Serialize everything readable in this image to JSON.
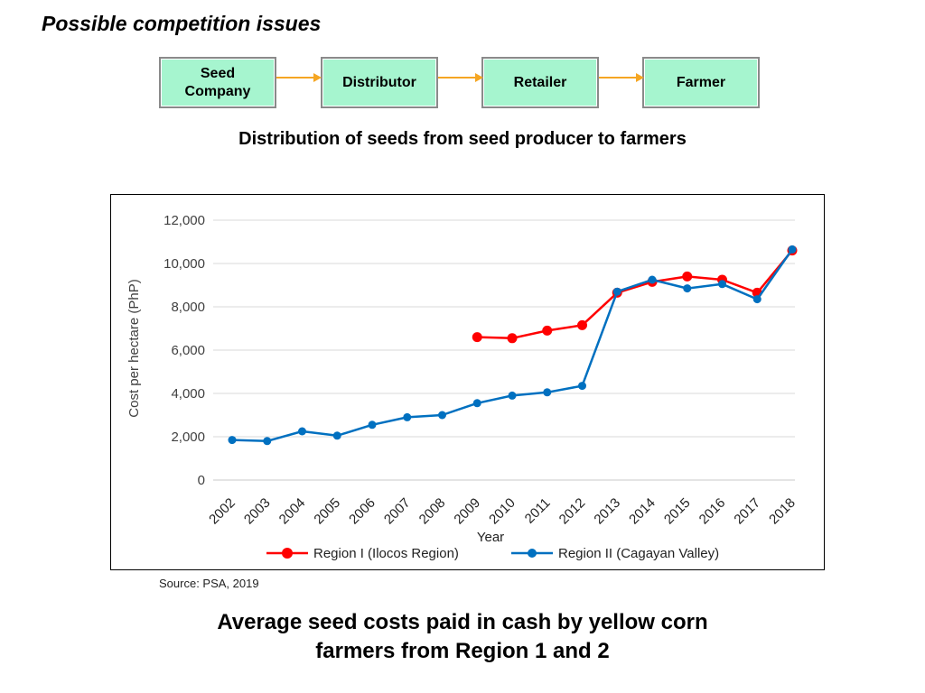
{
  "page": {
    "title": "Possible competition issues"
  },
  "flow": {
    "steps": [
      "Seed\nCompany",
      "Distributor",
      "Retailer",
      "Farmer"
    ],
    "box_color": "#a6f5cf",
    "arrow_color": "#f5a623",
    "caption": "Distribution of seeds from seed producer to farmers"
  },
  "chart_data": {
    "type": "line",
    "title": "",
    "xlabel": "Year",
    "ylabel": "Cost per hectare (PhP)",
    "categories": [
      "2002",
      "2003",
      "2004",
      "2005",
      "2006",
      "2007",
      "2008",
      "2009",
      "2010",
      "2011",
      "2012",
      "2013",
      "2014",
      "2015",
      "2016",
      "2017",
      "2018"
    ],
    "ylim": [
      0,
      12000
    ],
    "yticks": [
      0,
      2000,
      4000,
      6000,
      8000,
      10000,
      12000
    ],
    "ytick_labels": [
      "0",
      "2,000",
      "4,000",
      "6,000",
      "8,000",
      "10,000",
      "12,000"
    ],
    "grid": true,
    "legend_position": "bottom",
    "series": [
      {
        "name": "Region I (Ilocos Region)",
        "color": "#ff0000",
        "values": [
          null,
          null,
          null,
          null,
          null,
          null,
          null,
          6600,
          6550,
          6900,
          7150,
          8650,
          9150,
          9400,
          9250,
          8650,
          10600
        ]
      },
      {
        "name": "Region II (Cagayan Valley)",
        "color": "#0070c0",
        "values": [
          1850,
          1800,
          2250,
          2050,
          2550,
          2900,
          3000,
          3550,
          3900,
          4050,
          4350,
          8700,
          9250,
          8850,
          9050,
          8350,
          10650
        ]
      }
    ]
  },
  "source": "Source: PSA, 2019",
  "chart_caption": "Average seed costs paid in cash by yellow corn\nfarmers  from Region 1 and 2"
}
